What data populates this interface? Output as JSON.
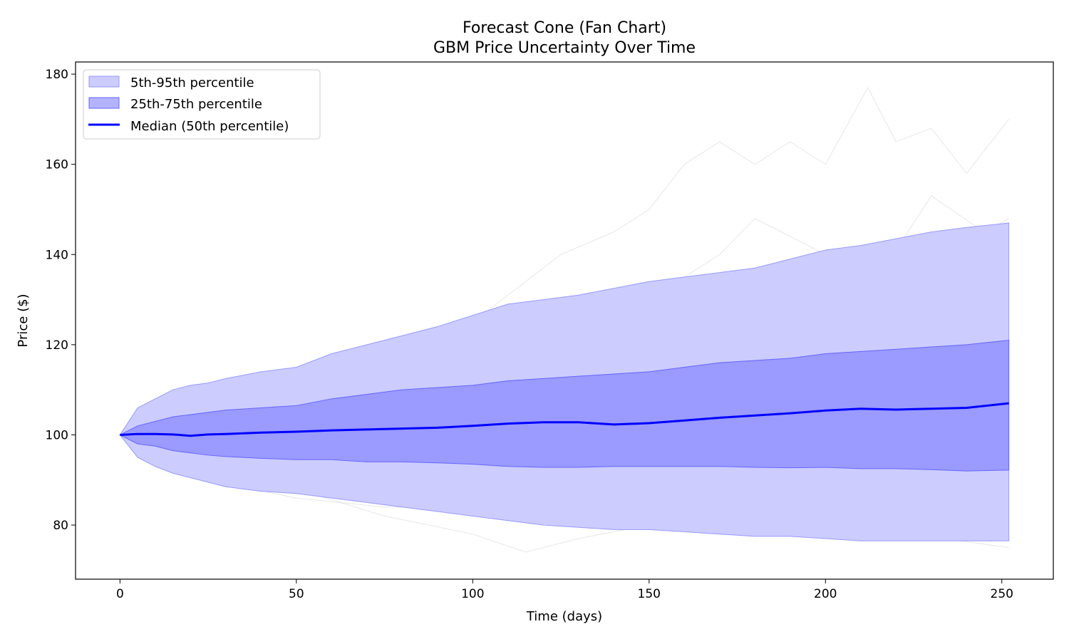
{
  "chart_data": {
    "type": "area",
    "title": "Forecast Cone (Fan Chart)",
    "subtitle": "GBM Price Uncertainty Over Time",
    "xlabel": "Time (days)",
    "ylabel": "Price ($)",
    "xlim": [
      -12.6,
      264.6
    ],
    "ylim": [
      68,
      182.7
    ],
    "xticks": [
      0,
      50,
      100,
      150,
      200,
      250
    ],
    "yticks": [
      80,
      100,
      120,
      140,
      160,
      180
    ],
    "grid": false,
    "legend_position": "top-left",
    "colors": {
      "band_outer": "#ccccff",
      "band_inner": "#9090ff",
      "median": "#0000ff",
      "paths": "#bbbbbb"
    },
    "x": [
      0,
      5,
      10,
      15,
      20,
      25,
      30,
      40,
      50,
      60,
      70,
      80,
      90,
      100,
      110,
      120,
      130,
      140,
      150,
      160,
      170,
      180,
      190,
      200,
      210,
      220,
      230,
      240,
      252
    ],
    "series": [
      {
        "name": "5th-95th percentile",
        "kind": "band",
        "lower": [
          100,
          95,
          93,
          91.5,
          90.5,
          89.5,
          88.5,
          87.5,
          87,
          86,
          85,
          84,
          83,
          82,
          81,
          80,
          79.5,
          79,
          79,
          78.5,
          78,
          77.5,
          77.5,
          77,
          76.5,
          76.5,
          76.5,
          76.5,
          76.5
        ],
        "upper": [
          100,
          106,
          108,
          110,
          111,
          111.5,
          112.5,
          114,
          115,
          118,
          120,
          122,
          124,
          126.5,
          129,
          130,
          131,
          132.5,
          134,
          135,
          136,
          137,
          139,
          141,
          142,
          143.5,
          145,
          146,
          147
        ]
      },
      {
        "name": "25th-75th percentile",
        "kind": "band",
        "lower": [
          100,
          98,
          97.5,
          96.5,
          96,
          95.5,
          95.2,
          94.8,
          94.5,
          94.5,
          94,
          94,
          93.8,
          93.5,
          93,
          92.8,
          92.8,
          93,
          93,
          93,
          93,
          92.8,
          92.7,
          92.8,
          92.5,
          92.5,
          92.3,
          92,
          92.2
        ],
        "upper": [
          100,
          102,
          103,
          104,
          104.5,
          105,
          105.5,
          106,
          106.5,
          108,
          109,
          110,
          110.5,
          111,
          112,
          112.5,
          113,
          113.5,
          114,
          115,
          116,
          116.5,
          117,
          118,
          118.5,
          119,
          119.5,
          120,
          121
        ]
      },
      {
        "name": "Median (50th percentile)",
        "kind": "line",
        "values": [
          100,
          100.2,
          100.2,
          100.1,
          99.8,
          100.1,
          100.2,
          100.5,
          100.7,
          101,
          101.2,
          101.4,
          101.6,
          102,
          102.5,
          102.8,
          102.8,
          102.3,
          102.6,
          103.2,
          103.8,
          104.3,
          104.8,
          105.4,
          105.8,
          105.6,
          105.8,
          106,
          107
        ]
      }
    ],
    "sample_paths": [
      {
        "x": [
          0,
          25,
          50,
          75,
          100,
          125,
          140,
          150,
          160,
          170,
          180,
          190,
          200,
          212,
          220,
          230,
          240,
          252
        ],
        "values": [
          100,
          106,
          110,
          118,
          125,
          140,
          145,
          150,
          160,
          165,
          160,
          165,
          160,
          177,
          165,
          168,
          158,
          170
        ]
      },
      {
        "x": [
          0,
          25,
          50,
          75,
          100,
          125,
          150,
          170,
          180,
          200,
          215,
          230,
          245,
          252
        ],
        "values": [
          100,
          104,
          108,
          112,
          118,
          124,
          130,
          140,
          148,
          140,
          135,
          153,
          145,
          148
        ]
      },
      {
        "x": [
          0,
          25,
          50,
          75,
          100,
          115,
          130,
          150,
          175,
          200,
          225,
          252
        ],
        "values": [
          100,
          92,
          88,
          82,
          78,
          74,
          77,
          80,
          78,
          82,
          79,
          80
        ]
      },
      {
        "x": [
          0,
          25,
          50,
          75,
          100,
          125,
          150,
          175,
          200,
          225,
          252
        ],
        "values": [
          100,
          108,
          112,
          110,
          115,
          120,
          125,
          122,
          128,
          130,
          135
        ]
      },
      {
        "x": [
          0,
          25,
          50,
          75,
          100,
          125,
          150,
          175,
          200,
          225,
          252
        ],
        "values": [
          100,
          90,
          86,
          84,
          84,
          86,
          83,
          85,
          80,
          78,
          75
        ]
      }
    ]
  }
}
